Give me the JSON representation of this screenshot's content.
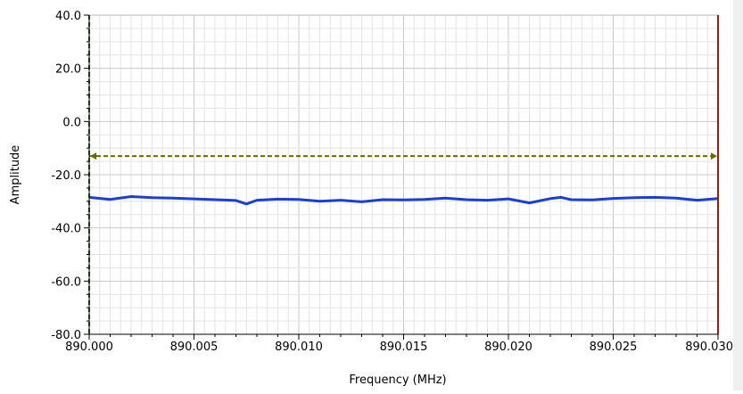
{
  "chart_data": {
    "type": "line",
    "title": "",
    "xlabel": "Frequency (MHz)",
    "ylabel": "Amplitude",
    "xlim": [
      890.0,
      890.03
    ],
    "ylim": [
      -80,
      40
    ],
    "x_ticks": [
      "890.000",
      "890.005",
      "890.010",
      "890.015",
      "890.020",
      "890.025",
      "890.030"
    ],
    "y_ticks": [
      "40.0",
      "20.0",
      "0.0",
      "-20.0",
      "-40.0",
      "-60.0",
      "-80.0"
    ],
    "grid": true,
    "series": [
      {
        "color": "#1a3fd6",
        "x": [
          890.0,
          890.001,
          890.002,
          890.003,
          890.004,
          890.005,
          890.006,
          890.007,
          890.0075,
          890.008,
          890.009,
          890.01,
          890.011,
          890.012,
          890.013,
          890.014,
          890.015,
          890.016,
          890.017,
          890.018,
          890.019,
          890.02,
          890.021,
          890.022,
          890.0225,
          890.023,
          890.024,
          890.025,
          890.026,
          890.027,
          890.028,
          890.029,
          890.03
        ],
        "y": [
          -28.5,
          -29.3,
          -28.2,
          -28.6,
          -28.8,
          -29.1,
          -29.4,
          -29.7,
          -31.0,
          -29.6,
          -29.2,
          -29.3,
          -30.0,
          -29.6,
          -30.2,
          -29.4,
          -29.5,
          -29.3,
          -28.8,
          -29.4,
          -29.6,
          -29.1,
          -30.6,
          -29.0,
          -28.5,
          -29.4,
          -29.5,
          -28.9,
          -28.6,
          -28.5,
          -28.8,
          -29.6,
          -29.0
        ]
      }
    ],
    "cursors": [
      {
        "orientation": "horizontal",
        "y": -13.0,
        "color": "#6b6b00",
        "style": "dashed"
      },
      {
        "orientation": "vertical",
        "x": 890.0,
        "color": "#2f6b2f",
        "style": "dashed"
      },
      {
        "orientation": "vertical",
        "x": 890.03,
        "color": "#a01818",
        "style": "solid"
      }
    ]
  }
}
